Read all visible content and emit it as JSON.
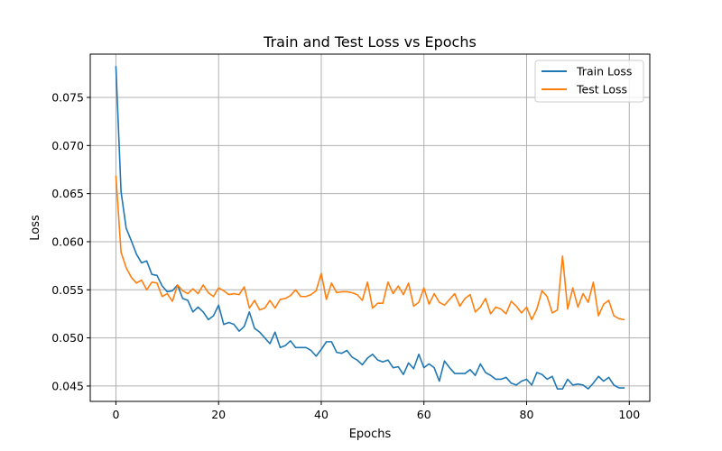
{
  "chart_data": {
    "type": "line",
    "title": "Train and Test Loss vs Epochs",
    "xlabel": "Epochs",
    "ylabel": "Loss",
    "xlim": [
      -5,
      104
    ],
    "ylim": [
      0.0434,
      0.0795
    ],
    "xticks": [
      0,
      20,
      40,
      60,
      80,
      100
    ],
    "yticks": [
      0.045,
      0.05,
      0.055,
      0.06,
      0.065,
      0.07,
      0.075
    ],
    "xtick_labels": [
      "0",
      "20",
      "40",
      "60",
      "80",
      "100"
    ],
    "ytick_labels": [
      "0.045",
      "0.050",
      "0.055",
      "0.060",
      "0.065",
      "0.070",
      "0.075"
    ],
    "grid": true,
    "legend_position": "top-right",
    "series": [
      {
        "name": "Train Loss",
        "color": "#1f77b4",
        "x": [
          0,
          1,
          2,
          3,
          4,
          5,
          6,
          7,
          8,
          9,
          10,
          11,
          12,
          13,
          14,
          15,
          16,
          17,
          18,
          19,
          20,
          21,
          22,
          23,
          24,
          25,
          26,
          27,
          28,
          29,
          30,
          31,
          32,
          33,
          34,
          35,
          36,
          37,
          38,
          39,
          40,
          41,
          42,
          43,
          44,
          45,
          46,
          47,
          48,
          49,
          50,
          51,
          52,
          53,
          54,
          55,
          56,
          57,
          58,
          59,
          60,
          61,
          62,
          63,
          64,
          65,
          66,
          67,
          68,
          69,
          70,
          71,
          72,
          73,
          74,
          75,
          76,
          77,
          78,
          79,
          80,
          81,
          82,
          83,
          84,
          85,
          86,
          87,
          88,
          89,
          90,
          91,
          92,
          93,
          94,
          95,
          96,
          97,
          98,
          99
        ],
        "y": [
          0.0782,
          0.0652,
          0.0614,
          0.0601,
          0.0587,
          0.0578,
          0.058,
          0.0566,
          0.0565,
          0.0554,
          0.0548,
          0.0549,
          0.0555,
          0.0541,
          0.0539,
          0.0527,
          0.0532,
          0.0527,
          0.0519,
          0.0523,
          0.0534,
          0.0514,
          0.0516,
          0.0514,
          0.0507,
          0.0512,
          0.0527,
          0.051,
          0.0506,
          0.05,
          0.0494,
          0.0506,
          0.049,
          0.0492,
          0.0497,
          0.049,
          0.049,
          0.049,
          0.0487,
          0.0481,
          0.0488,
          0.0496,
          0.0496,
          0.0485,
          0.0484,
          0.0487,
          0.048,
          0.0477,
          0.0472,
          0.0479,
          0.0483,
          0.0477,
          0.0475,
          0.0477,
          0.0469,
          0.047,
          0.0462,
          0.0474,
          0.0468,
          0.0483,
          0.0469,
          0.0473,
          0.0469,
          0.0455,
          0.0476,
          0.0469,
          0.0463,
          0.0463,
          0.0463,
          0.0467,
          0.0461,
          0.0473,
          0.0464,
          0.0461,
          0.0457,
          0.0457,
          0.0459,
          0.0453,
          0.0451,
          0.0455,
          0.0457,
          0.0451,
          0.0464,
          0.0462,
          0.0457,
          0.046,
          0.0447,
          0.0447,
          0.0457,
          0.0451,
          0.0452,
          0.0451,
          0.0447,
          0.0453,
          0.046,
          0.0455,
          0.0459,
          0.0451,
          0.0448,
          0.0448
        ]
      },
      {
        "name": "Test Loss",
        "color": "#ff7f0e",
        "x": [
          0,
          1,
          2,
          3,
          4,
          5,
          6,
          7,
          8,
          9,
          10,
          11,
          12,
          13,
          14,
          15,
          16,
          17,
          18,
          19,
          20,
          21,
          22,
          23,
          24,
          25,
          26,
          27,
          28,
          29,
          30,
          31,
          32,
          33,
          34,
          35,
          36,
          37,
          38,
          39,
          40,
          41,
          42,
          43,
          44,
          45,
          46,
          47,
          48,
          49,
          50,
          51,
          52,
          53,
          54,
          55,
          56,
          57,
          58,
          59,
          60,
          61,
          62,
          63,
          64,
          65,
          66,
          67,
          68,
          69,
          70,
          71,
          72,
          73,
          74,
          75,
          76,
          77,
          78,
          79,
          80,
          81,
          82,
          83,
          84,
          85,
          86,
          87,
          88,
          89,
          90,
          91,
          92,
          93,
          94,
          95,
          96,
          97,
          98,
          99
        ],
        "y": [
          0.0668,
          0.0589,
          0.0573,
          0.0563,
          0.0557,
          0.056,
          0.055,
          0.0558,
          0.0557,
          0.0543,
          0.0546,
          0.0538,
          0.0555,
          0.0549,
          0.0546,
          0.0551,
          0.0546,
          0.0555,
          0.0547,
          0.0543,
          0.0552,
          0.0549,
          0.0545,
          0.0546,
          0.0545,
          0.0553,
          0.0531,
          0.0539,
          0.0529,
          0.0531,
          0.0539,
          0.0531,
          0.054,
          0.0541,
          0.0544,
          0.055,
          0.0543,
          0.0543,
          0.0545,
          0.0549,
          0.0567,
          0.054,
          0.0557,
          0.0547,
          0.0548,
          0.0548,
          0.0547,
          0.0545,
          0.0539,
          0.0558,
          0.0531,
          0.0536,
          0.0536,
          0.0558,
          0.0546,
          0.0554,
          0.0545,
          0.0557,
          0.0533,
          0.0537,
          0.0552,
          0.0535,
          0.0546,
          0.0537,
          0.0534,
          0.054,
          0.0546,
          0.0533,
          0.0541,
          0.0545,
          0.0527,
          0.0532,
          0.0541,
          0.0525,
          0.0532,
          0.053,
          0.0525,
          0.0538,
          0.0533,
          0.0526,
          0.0532,
          0.0519,
          0.053,
          0.0549,
          0.0543,
          0.0526,
          0.0529,
          0.0585,
          0.053,
          0.0552,
          0.0532,
          0.0546,
          0.0537,
          0.0558,
          0.0523,
          0.0535,
          0.0539,
          0.0523,
          0.052,
          0.0519
        ]
      }
    ]
  }
}
